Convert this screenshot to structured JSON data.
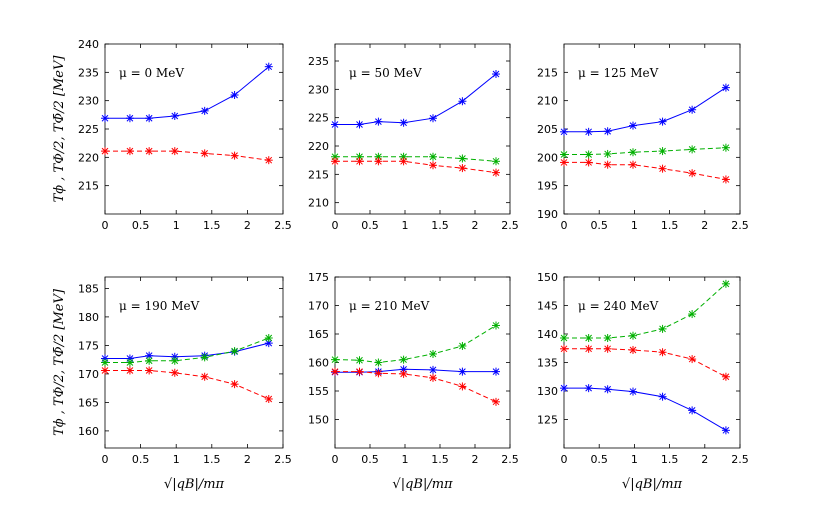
{
  "chart_data": [
    {
      "type": "line",
      "annotation": "μ = 0 MeV",
      "ylabel": "Tϕ , TΦ/2, TΦ̄/2 [MeV]",
      "xlabel": "",
      "xlim": [
        0,
        2.5
      ],
      "ylim": [
        210,
        240
      ],
      "xticks": [
        "0",
        "0.5",
        "1",
        "1.5",
        "2",
        "2.5"
      ],
      "yticks": [
        "215",
        "220",
        "225",
        "230",
        "235",
        "240"
      ],
      "x": [
        0,
        0.35,
        0.62,
        0.98,
        1.4,
        1.82,
        2.3
      ],
      "series": [
        {
          "color": "#0000ff",
          "dash": false,
          "values": [
            226.9,
            226.9,
            226.9,
            227.3,
            228.2,
            231.0,
            236.0
          ]
        },
        {
          "color": "#ff0000",
          "dash": true,
          "values": [
            221.1,
            221.1,
            221.1,
            221.1,
            220.7,
            220.3,
            219.5
          ]
        }
      ]
    },
    {
      "type": "line",
      "annotation": "μ = 50 MeV",
      "ylabel": "",
      "xlabel": "",
      "xlim": [
        0,
        2.5
      ],
      "ylim": [
        208,
        238
      ],
      "xticks": [
        "0",
        "0.5",
        "1",
        "1.5",
        "2",
        "2.5"
      ],
      "yticks": [
        "210",
        "215",
        "220",
        "225",
        "230",
        "235"
      ],
      "x": [
        0,
        0.35,
        0.62,
        0.98,
        1.4,
        1.82,
        2.3
      ],
      "series": [
        {
          "color": "#0000ff",
          "dash": false,
          "values": [
            223.8,
            223.8,
            224.3,
            224.1,
            224.9,
            227.9,
            232.7
          ]
        },
        {
          "color": "#00b000",
          "dash": true,
          "values": [
            218.1,
            218.1,
            218.1,
            218.1,
            218.1,
            217.8,
            217.3
          ]
        },
        {
          "color": "#ff0000",
          "dash": true,
          "values": [
            217.3,
            217.3,
            217.3,
            217.3,
            216.6,
            216.1,
            215.3
          ]
        }
      ]
    },
    {
      "type": "line",
      "annotation": "μ = 125 MeV",
      "ylabel": "",
      "xlabel": "",
      "xlim": [
        0,
        2.5
      ],
      "ylim": [
        190,
        220
      ],
      "xticks": [
        "0",
        "0.5",
        "1",
        "1.5",
        "2",
        "2.5"
      ],
      "yticks": [
        "190",
        "195",
        "200",
        "205",
        "210",
        "215"
      ],
      "x": [
        0,
        0.35,
        0.62,
        0.98,
        1.4,
        1.82,
        2.3
      ],
      "series": [
        {
          "color": "#0000ff",
          "dash": false,
          "values": [
            204.5,
            204.5,
            204.6,
            205.6,
            206.3,
            208.4,
            212.3
          ]
        },
        {
          "color": "#00b000",
          "dash": true,
          "values": [
            200.5,
            200.5,
            200.6,
            200.9,
            201.1,
            201.4,
            201.7
          ]
        },
        {
          "color": "#ff0000",
          "dash": true,
          "values": [
            199.1,
            199.1,
            198.7,
            198.7,
            198.0,
            197.2,
            196.1
          ]
        }
      ]
    },
    {
      "type": "line",
      "annotation": "μ = 190 MeV",
      "ylabel": "Tϕ , TΦ/2, TΦ̄/2 [MeV]",
      "xlabel": "√|qB|/mπ",
      "xlim": [
        0,
        2.5
      ],
      "ylim": [
        157,
        187
      ],
      "xticks": [
        "0",
        "0.5",
        "1",
        "1.5",
        "2",
        "2.5"
      ],
      "yticks": [
        "160",
        "165",
        "170",
        "175",
        "180",
        "185"
      ],
      "x": [
        0,
        0.35,
        0.62,
        0.98,
        1.4,
        1.82,
        2.3
      ],
      "series": [
        {
          "color": "#0000ff",
          "dash": false,
          "values": [
            172.7,
            172.7,
            173.2,
            173.0,
            173.2,
            173.9,
            175.4
          ]
        },
        {
          "color": "#00b000",
          "dash": true,
          "values": [
            172.0,
            172.0,
            172.3,
            172.3,
            172.9,
            174.0,
            176.3
          ]
        },
        {
          "color": "#ff0000",
          "dash": true,
          "values": [
            170.6,
            170.6,
            170.6,
            170.2,
            169.5,
            168.2,
            165.6
          ]
        }
      ]
    },
    {
      "type": "line",
      "annotation": "μ = 210 MeV",
      "ylabel": "",
      "xlabel": "√|qB|/mπ",
      "xlim": [
        0,
        2.5
      ],
      "ylim": [
        145,
        175
      ],
      "xticks": [
        "0",
        "0.5",
        "1",
        "1.5",
        "2",
        "2.5"
      ],
      "yticks": [
        "150",
        "155",
        "160",
        "165",
        "170",
        "175"
      ],
      "x": [
        0,
        0.35,
        0.62,
        0.98,
        1.4,
        1.82,
        2.3
      ],
      "series": [
        {
          "color": "#0000ff",
          "dash": false,
          "values": [
            158.3,
            158.3,
            158.4,
            158.8,
            158.7,
            158.4,
            158.4
          ]
        },
        {
          "color": "#00b000",
          "dash": true,
          "values": [
            160.5,
            160.4,
            160.0,
            160.5,
            161.5,
            162.9,
            166.5
          ]
        },
        {
          "color": "#ff0000",
          "dash": true,
          "values": [
            158.4,
            158.4,
            158.1,
            158.0,
            157.3,
            155.8,
            153.1
          ]
        }
      ]
    },
    {
      "type": "line",
      "annotation": "μ = 240 MeV",
      "ylabel": "",
      "xlabel": "√|qB|/mπ",
      "xlim": [
        0,
        2.5
      ],
      "ylim": [
        120,
        150
      ],
      "xticks": [
        "0",
        "0.5",
        "1",
        "1.5",
        "2",
        "2.5"
      ],
      "yticks": [
        "125",
        "130",
        "135",
        "140",
        "145",
        "150"
      ],
      "x": [
        0,
        0.35,
        0.62,
        0.98,
        1.4,
        1.82,
        2.3
      ],
      "series": [
        {
          "color": "#0000ff",
          "dash": false,
          "values": [
            130.5,
            130.5,
            130.3,
            129.9,
            129.0,
            126.6,
            123.1
          ]
        },
        {
          "color": "#00b000",
          "dash": true,
          "values": [
            139.3,
            139.3,
            139.3,
            139.7,
            140.9,
            143.5,
            148.8
          ]
        },
        {
          "color": "#ff0000",
          "dash": true,
          "values": [
            137.4,
            137.4,
            137.4,
            137.2,
            136.8,
            135.6,
            132.5
          ]
        }
      ]
    }
  ]
}
